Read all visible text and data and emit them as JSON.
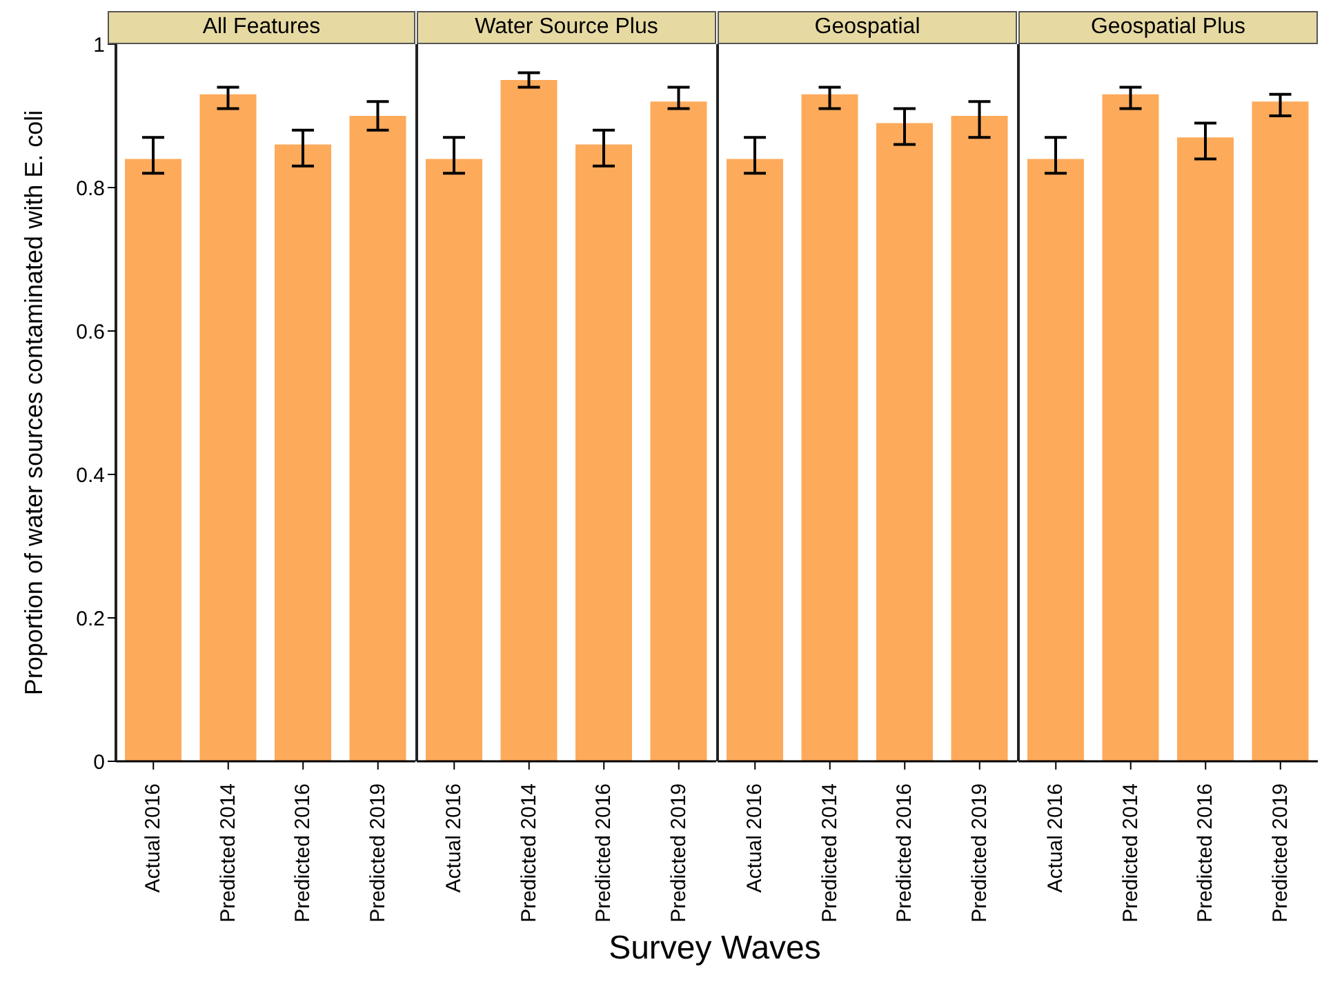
{
  "chart_data": [
    {
      "type": "bar",
      "title": "All Features",
      "ylabel": "Proportion of water sources contaminated with E. coli",
      "xlabel": "Survey Waves",
      "categories": [
        "Actual 2016",
        "Predicted 2014",
        "Predicted 2016",
        "Predicted 2019"
      ],
      "values": [
        0.84,
        0.93,
        0.86,
        0.9
      ],
      "errors": [
        [
          0.82,
          0.87
        ],
        [
          0.91,
          0.94
        ],
        [
          0.83,
          0.88
        ],
        [
          0.88,
          0.92
        ]
      ],
      "color": "#fdaa5b",
      "ylim": [
        0,
        1
      ],
      "yticks": [
        0,
        0.2,
        0.4,
        0.6,
        0.8,
        1
      ],
      "grid": false
    },
    {
      "type": "bar",
      "title": "Water Source Plus",
      "categories": [
        "Actual 2016",
        "Predicted 2014",
        "Predicted 2016",
        "Predicted 2019"
      ],
      "values": [
        0.84,
        0.95,
        0.86,
        0.92
      ],
      "errors": [
        [
          0.82,
          0.87
        ],
        [
          0.94,
          0.96
        ],
        [
          0.83,
          0.88
        ],
        [
          0.91,
          0.94
        ]
      ],
      "color": "#fdaa5b",
      "ylim": [
        0,
        1
      ],
      "yticks": [
        0,
        0.2,
        0.4,
        0.6,
        0.8,
        1
      ],
      "grid": false,
      "tick_labels": "x"
    },
    {
      "type": "bar",
      "title": "Geospatial",
      "categories": [
        "Actual 2016",
        "Predicted 2014",
        "Predicted 2016",
        "Predicted 2019"
      ],
      "values": [
        0.84,
        0.93,
        0.89,
        0.9
      ],
      "errors": [
        [
          0.82,
          0.87
        ],
        [
          0.91,
          0.94
        ],
        [
          0.86,
          0.91
        ],
        [
          0.87,
          0.92
        ]
      ],
      "color": "#fdaa5b",
      "ylim": [
        0,
        1
      ],
      "yticks": [
        0,
        0.2,
        0.4,
        0.6,
        0.8,
        1
      ],
      "grid": false,
      "tick_labels": "x"
    },
    {
      "type": "bar",
      "title": "Geospatial Plus",
      "categories": [
        "Actual 2016",
        "Predicted 2014",
        "Predicted 2016",
        "Predicted 2019"
      ],
      "values": [
        0.84,
        0.93,
        0.87,
        0.92
      ],
      "errors": [
        [
          0.82,
          0.87
        ],
        [
          0.91,
          0.94
        ],
        [
          0.84,
          0.89
        ],
        [
          0.9,
          0.93
        ]
      ],
      "color": "#fdaa5b",
      "ylim": [
        0,
        1
      ],
      "yticks": [
        0,
        0.2,
        0.4,
        0.6,
        0.8,
        1
      ],
      "grid": false,
      "tick_labels": "x"
    }
  ]
}
